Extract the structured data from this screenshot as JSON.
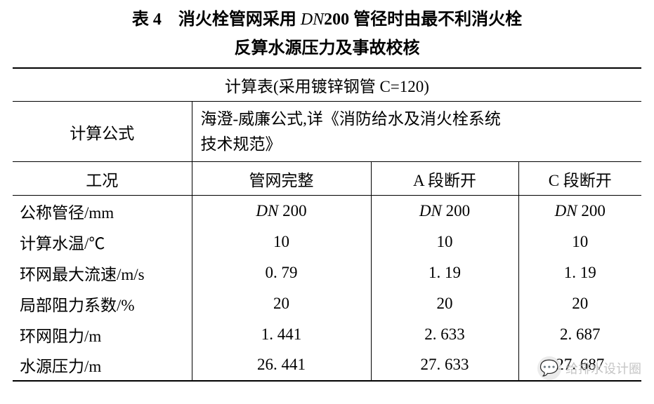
{
  "caption": {
    "prefix": "表 4　消火栓管网采用 ",
    "dn": "DN",
    "dn_num": "200",
    "line1_suffix": " 管径时由最不利消火栓",
    "line2": "反算水源压力及事故校核"
  },
  "header1": "计算表(采用镀锌钢管 C=120)",
  "formula_row": {
    "label": "计算公式",
    "text_l1": "海澄-威廉公式,详《消防给水及消火栓系统",
    "text_l2": "技术规范》"
  },
  "cond_row": {
    "label": "工况",
    "c0": "管网完整",
    "c1": "A 段断开",
    "c2": "C 段断开"
  },
  "rows": [
    {
      "label": "公称管径/mm",
      "v0": "DN 200",
      "v1": "DN 200",
      "v2": "DN 200",
      "dn": true
    },
    {
      "label": "计算水温/℃",
      "v0": "10",
      "v1": "10",
      "v2": "10"
    },
    {
      "label": "环网最大流速/m/s",
      "v0": "0. 79",
      "v1": "1. 19",
      "v2": "1. 19"
    },
    {
      "label": "局部阻力系数/%",
      "v0": "20",
      "v1": "20",
      "v2": "20"
    },
    {
      "label": "环网阻力/m",
      "v0": "1. 441",
      "v1": "2. 633",
      "v2": "2. 687"
    },
    {
      "label": "水源压力/m",
      "v0": "26. 441",
      "v1": "27. 633",
      "v2": "27. 687"
    }
  ],
  "watermark": {
    "icon": "💬",
    "text": "给排水设计圈"
  }
}
